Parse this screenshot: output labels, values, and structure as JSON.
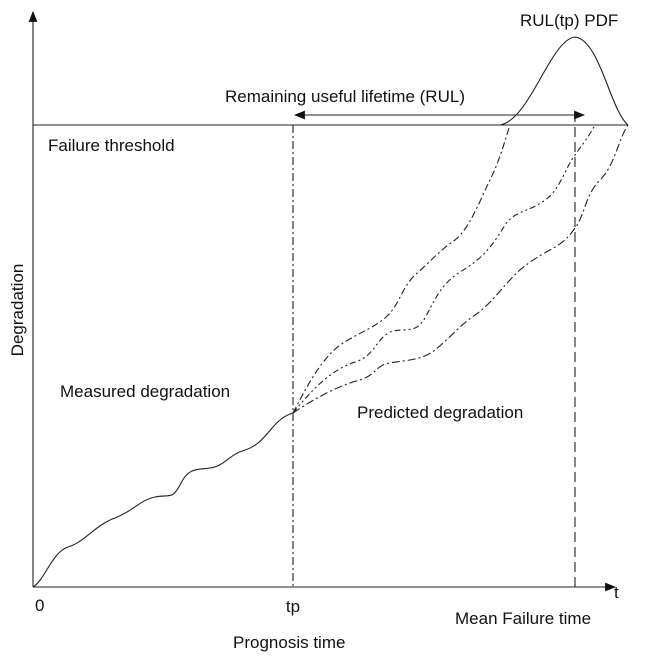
{
  "labels": {
    "pdf": "RUL(tp) PDF",
    "rul": "Remaining useful lifetime (RUL)",
    "threshold": "Failure threshold",
    "y_axis": "Degradation",
    "measured": "Measured degradation",
    "predicted": "Predicted degradation",
    "origin": "0",
    "tp": "tp",
    "t": "t",
    "mean_failure": "Mean Failure time",
    "prognosis": "Prognosis time"
  }
}
